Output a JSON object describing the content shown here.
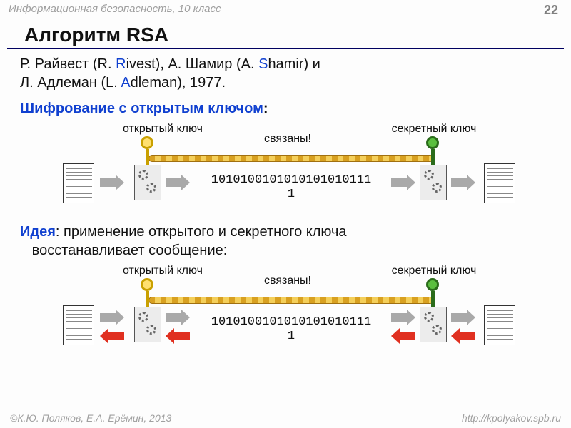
{
  "header": {
    "course": "Информационная безопасность, 10 класс",
    "page": "22"
  },
  "title": "Алгоритм RSA",
  "authors": {
    "line1_a": "Р. Райвест (R. ",
    "line1_hl": "R",
    "line1_b": "ivest), А. Шамир (A. ",
    "line1_hl2": "S",
    "line1_c": "hamir) и",
    "line2_a": "Л. Адлеман (L. ",
    "line2_hl": "A",
    "line2_b": "dleman), 1977."
  },
  "subhead": {
    "hl": "Шифрование с открытым ключом",
    "colon": ":"
  },
  "labels": {
    "public": "открытый ключ",
    "linked": "связаны!",
    "secret": "секретный ключ"
  },
  "cipher": {
    "line1": "1010100101010101010111",
    "line2": "1"
  },
  "idea": {
    "hl": "Идея",
    "rest": ": применение открытого и секретного ключа",
    "line2": "восстанавливает сообщение:"
  },
  "footer": {
    "left": "©К.Ю. Поляков, Е.А. Ерёмин, 2013",
    "right": "http://kpolyakov.spb.ru"
  },
  "colors": {
    "accent_blue": "#1040d0",
    "chain_gold": "#d8a020",
    "arrow_gray": "#a9a9a9",
    "arrow_red": "#e03020",
    "key_yellow": "#ffe070",
    "key_green": "#5bbf3f"
  }
}
